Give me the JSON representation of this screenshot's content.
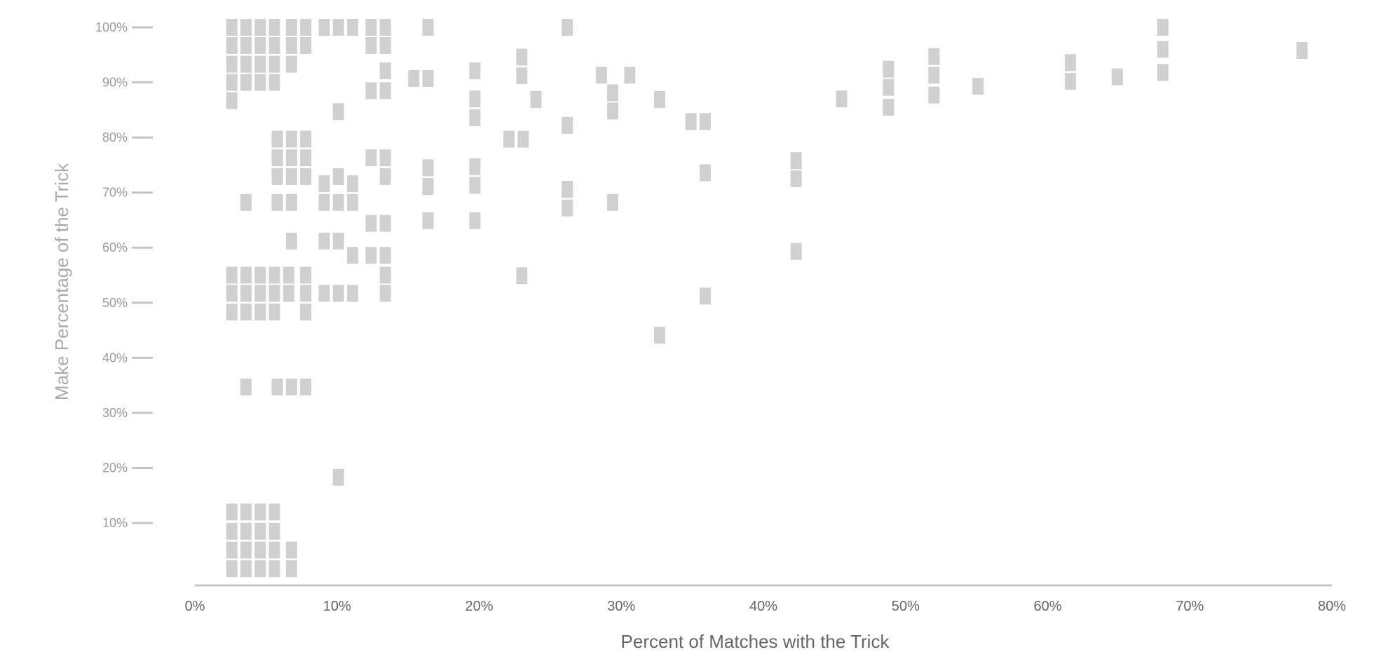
{
  "chart_data": {
    "type": "scatter",
    "title": "",
    "xlabel": "Percent of Matches with the Trick",
    "ylabel": "Make Percentage of the Trick",
    "xlim": [
      0,
      80
    ],
    "ylim": [
      0,
      100
    ],
    "x_ticks": [
      "0%",
      "10%",
      "20%",
      "30%",
      "40%",
      "50%",
      "60%",
      "70%",
      "80%"
    ],
    "y_ticks": [
      "10%",
      "20%",
      "30%",
      "40%",
      "50%",
      "60%",
      "70%",
      "80%",
      "90%",
      "100%"
    ],
    "grid": false,
    "marker": "rectangle",
    "mark_color": "#d0d0d0",
    "points": [
      {
        "x": 2.6,
        "y": 100
      },
      {
        "x": 2.6,
        "y": 96.7
      },
      {
        "x": 2.6,
        "y": 93.3
      },
      {
        "x": 2.6,
        "y": 90
      },
      {
        "x": 2.6,
        "y": 86.7
      },
      {
        "x": 3.6,
        "y": 100
      },
      {
        "x": 3.6,
        "y": 96.7
      },
      {
        "x": 3.6,
        "y": 93.3
      },
      {
        "x": 3.6,
        "y": 90
      },
      {
        "x": 4.6,
        "y": 100
      },
      {
        "x": 4.6,
        "y": 96.7
      },
      {
        "x": 4.6,
        "y": 93.3
      },
      {
        "x": 4.6,
        "y": 90
      },
      {
        "x": 5.6,
        "y": 100
      },
      {
        "x": 5.6,
        "y": 96.7
      },
      {
        "x": 5.6,
        "y": 93.3
      },
      {
        "x": 5.6,
        "y": 90
      },
      {
        "x": 6.8,
        "y": 100
      },
      {
        "x": 6.8,
        "y": 96.7
      },
      {
        "x": 6.8,
        "y": 93.3
      },
      {
        "x": 7.8,
        "y": 100
      },
      {
        "x": 7.8,
        "y": 96.7
      },
      {
        "x": 9.1,
        "y": 100
      },
      {
        "x": 10.1,
        "y": 100
      },
      {
        "x": 11.1,
        "y": 100
      },
      {
        "x": 12.4,
        "y": 100
      },
      {
        "x": 12.4,
        "y": 96.7
      },
      {
        "x": 13.4,
        "y": 100
      },
      {
        "x": 13.4,
        "y": 96.7
      },
      {
        "x": 16.4,
        "y": 100
      },
      {
        "x": 26.2,
        "y": 100
      },
      {
        "x": 68.1,
        "y": 100
      },
      {
        "x": 77.9,
        "y": 95.8
      },
      {
        "x": 68.1,
        "y": 96
      },
      {
        "x": 68.1,
        "y": 91.8
      },
      {
        "x": 23.0,
        "y": 94.6
      },
      {
        "x": 23.0,
        "y": 91.2
      },
      {
        "x": 19.7,
        "y": 92.1
      },
      {
        "x": 13.4,
        "y": 92.1
      },
      {
        "x": 13.4,
        "y": 88.5
      },
      {
        "x": 12.4,
        "y": 88.5
      },
      {
        "x": 15.4,
        "y": 90.7
      },
      {
        "x": 16.4,
        "y": 90.7
      },
      {
        "x": 28.6,
        "y": 91.3
      },
      {
        "x": 30.6,
        "y": 91.3
      },
      {
        "x": 29.4,
        "y": 88.1
      },
      {
        "x": 29.4,
        "y": 84.8
      },
      {
        "x": 24.0,
        "y": 86.9
      },
      {
        "x": 32.7,
        "y": 86.9
      },
      {
        "x": 19.7,
        "y": 87.0
      },
      {
        "x": 19.7,
        "y": 83.6
      },
      {
        "x": 10.1,
        "y": 84.7
      },
      {
        "x": 26.2,
        "y": 82.2
      },
      {
        "x": 34.9,
        "y": 82.9
      },
      {
        "x": 35.9,
        "y": 82.9
      },
      {
        "x": 45.5,
        "y": 87.0
      },
      {
        "x": 48.8,
        "y": 92.4
      },
      {
        "x": 48.8,
        "y": 89.1
      },
      {
        "x": 48.8,
        "y": 85.5
      },
      {
        "x": 52.0,
        "y": 94.7
      },
      {
        "x": 52.0,
        "y": 91.3
      },
      {
        "x": 52.0,
        "y": 87.7
      },
      {
        "x": 55.1,
        "y": 89.3
      },
      {
        "x": 61.6,
        "y": 93.6
      },
      {
        "x": 61.6,
        "y": 90.2
      },
      {
        "x": 64.9,
        "y": 91
      },
      {
        "x": 22.1,
        "y": 79.7
      },
      {
        "x": 23.1,
        "y": 79.7
      },
      {
        "x": 5.8,
        "y": 79.7
      },
      {
        "x": 6.8,
        "y": 79.7
      },
      {
        "x": 7.8,
        "y": 79.7
      },
      {
        "x": 5.8,
        "y": 76.3
      },
      {
        "x": 6.8,
        "y": 76.3
      },
      {
        "x": 7.8,
        "y": 76.3
      },
      {
        "x": 5.8,
        "y": 72.9
      },
      {
        "x": 6.8,
        "y": 72.9
      },
      {
        "x": 7.8,
        "y": 72.9
      },
      {
        "x": 12.4,
        "y": 76.3
      },
      {
        "x": 13.4,
        "y": 76.3
      },
      {
        "x": 13.4,
        "y": 72.9
      },
      {
        "x": 16.4,
        "y": 74.5
      },
      {
        "x": 16.4,
        "y": 71.1
      },
      {
        "x": 19.7,
        "y": 74.7
      },
      {
        "x": 19.7,
        "y": 71.3
      },
      {
        "x": 26.2,
        "y": 70.6
      },
      {
        "x": 26.2,
        "y": 67.2
      },
      {
        "x": 35.9,
        "y": 73.6
      },
      {
        "x": 42.3,
        "y": 75.8
      },
      {
        "x": 42.3,
        "y": 72.5
      },
      {
        "x": 9.1,
        "y": 71.6
      },
      {
        "x": 10.1,
        "y": 72.9
      },
      {
        "x": 11.1,
        "y": 71.6
      },
      {
        "x": 3.6,
        "y": 68.2
      },
      {
        "x": 5.8,
        "y": 68.2
      },
      {
        "x": 6.8,
        "y": 68.2
      },
      {
        "x": 9.1,
        "y": 68.2
      },
      {
        "x": 10.1,
        "y": 68.2
      },
      {
        "x": 11.1,
        "y": 68.2
      },
      {
        "x": 29.4,
        "y": 68.2
      },
      {
        "x": 16.4,
        "y": 64.9
      },
      {
        "x": 19.7,
        "y": 64.9
      },
      {
        "x": 12.4,
        "y": 64.4
      },
      {
        "x": 13.4,
        "y": 64.4
      },
      {
        "x": 6.8,
        "y": 61.2
      },
      {
        "x": 9.1,
        "y": 61.2
      },
      {
        "x": 10.1,
        "y": 61.2
      },
      {
        "x": 11.1,
        "y": 58.6
      },
      {
        "x": 12.4,
        "y": 58.6
      },
      {
        "x": 13.4,
        "y": 58.6
      },
      {
        "x": 42.3,
        "y": 59.3
      },
      {
        "x": 23.0,
        "y": 54.9
      },
      {
        "x": 13.4,
        "y": 55
      },
      {
        "x": 2.6,
        "y": 55
      },
      {
        "x": 3.6,
        "y": 55
      },
      {
        "x": 4.6,
        "y": 55
      },
      {
        "x": 5.6,
        "y": 55
      },
      {
        "x": 6.6,
        "y": 55
      },
      {
        "x": 7.8,
        "y": 55
      },
      {
        "x": 2.6,
        "y": 51.7
      },
      {
        "x": 3.6,
        "y": 51.7
      },
      {
        "x": 4.6,
        "y": 51.7
      },
      {
        "x": 5.6,
        "y": 51.7
      },
      {
        "x": 6.6,
        "y": 51.7
      },
      {
        "x": 7.8,
        "y": 51.7
      },
      {
        "x": 9.1,
        "y": 51.7
      },
      {
        "x": 10.1,
        "y": 51.7
      },
      {
        "x": 11.1,
        "y": 51.7
      },
      {
        "x": 13.4,
        "y": 51.7
      },
      {
        "x": 2.6,
        "y": 48.3
      },
      {
        "x": 3.6,
        "y": 48.3
      },
      {
        "x": 4.6,
        "y": 48.3
      },
      {
        "x": 5.6,
        "y": 48.3
      },
      {
        "x": 7.8,
        "y": 48.3
      },
      {
        "x": 35.9,
        "y": 51.2
      },
      {
        "x": 32.7,
        "y": 44.1
      },
      {
        "x": 3.6,
        "y": 34.7
      },
      {
        "x": 5.8,
        "y": 34.7
      },
      {
        "x": 6.8,
        "y": 34.7
      },
      {
        "x": 7.8,
        "y": 34.7
      },
      {
        "x": 10.1,
        "y": 18.3
      },
      {
        "x": 2.6,
        "y": 12
      },
      {
        "x": 3.6,
        "y": 12
      },
      {
        "x": 4.6,
        "y": 12
      },
      {
        "x": 5.6,
        "y": 12
      },
      {
        "x": 2.6,
        "y": 8.5
      },
      {
        "x": 3.6,
        "y": 8.5
      },
      {
        "x": 4.6,
        "y": 8.5
      },
      {
        "x": 5.6,
        "y": 8.5
      },
      {
        "x": 2.6,
        "y": 5.1
      },
      {
        "x": 3.6,
        "y": 5.1
      },
      {
        "x": 4.6,
        "y": 5.1
      },
      {
        "x": 5.6,
        "y": 5.1
      },
      {
        "x": 6.8,
        "y": 5.1
      },
      {
        "x": 2.6,
        "y": 1.7
      },
      {
        "x": 3.6,
        "y": 1.7
      },
      {
        "x": 4.6,
        "y": 1.7
      },
      {
        "x": 5.6,
        "y": 1.7
      },
      {
        "x": 6.8,
        "y": 1.7
      }
    ]
  }
}
